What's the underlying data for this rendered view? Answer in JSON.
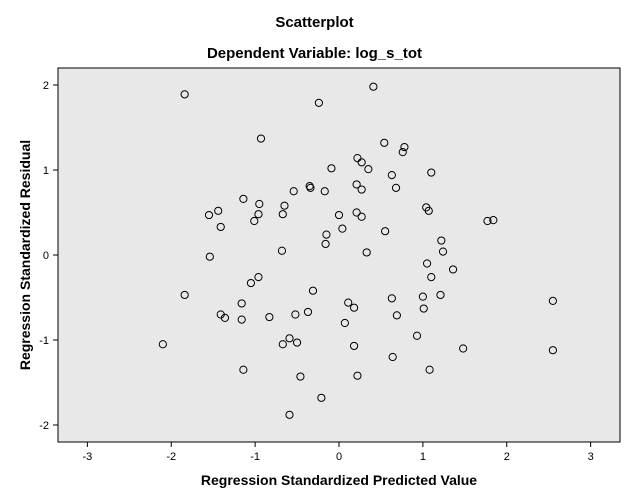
{
  "chart_data": {
    "type": "scatter",
    "title": "Scatterplot",
    "subtitle": "Dependent Variable: log_s_tot",
    "xlabel": "Regression Standardized Predicted Value",
    "ylabel": "Regression Standardized Residual",
    "xlim": [
      -3.35,
      3.35
    ],
    "ylim": [
      -2.2,
      2.2
    ],
    "x_ticks": [
      "-3",
      "-2",
      "-1",
      "0",
      "1",
      "2",
      "3"
    ],
    "y_ticks": [
      "2",
      "1",
      "0",
      "-1",
      "-2"
    ],
    "grid": false,
    "background": "#e8e8e8",
    "marker": "hollow circle",
    "points": [
      {
        "x": -1.84,
        "y": 1.89
      },
      {
        "x": -0.24,
        "y": 1.79
      },
      {
        "x": 0.41,
        "y": 1.98
      },
      {
        "x": -0.93,
        "y": 1.37
      },
      {
        "x": 0.54,
        "y": 1.32
      },
      {
        "x": 0.78,
        "y": 1.27
      },
      {
        "x": 0.76,
        "y": 1.21
      },
      {
        "x": 0.22,
        "y": 1.14
      },
      {
        "x": 0.27,
        "y": 1.09
      },
      {
        "x": 0.35,
        "y": 1.01
      },
      {
        "x": -0.09,
        "y": 1.02
      },
      {
        "x": 0.63,
        "y": 0.94
      },
      {
        "x": 1.1,
        "y": 0.97
      },
      {
        "x": 0.21,
        "y": 0.83
      },
      {
        "x": 0.68,
        "y": 0.79
      },
      {
        "x": -0.35,
        "y": 0.81
      },
      {
        "x": -0.54,
        "y": 0.75
      },
      {
        "x": 0.27,
        "y": 0.77
      },
      {
        "x": -0.34,
        "y": 0.79
      },
      {
        "x": -0.17,
        "y": 0.75
      },
      {
        "x": -1.14,
        "y": 0.66
      },
      {
        "x": -0.95,
        "y": 0.6
      },
      {
        "x": -0.65,
        "y": 0.58
      },
      {
        "x": 1.04,
        "y": 0.56
      },
      {
        "x": 1.07,
        "y": 0.52
      },
      {
        "x": -1.44,
        "y": 0.52
      },
      {
        "x": -1.55,
        "y": 0.47
      },
      {
        "x": -0.96,
        "y": 0.48
      },
      {
        "x": -0.67,
        "y": 0.48
      },
      {
        "x": 0.0,
        "y": 0.47
      },
      {
        "x": 0.21,
        "y": 0.5
      },
      {
        "x": 0.27,
        "y": 0.45
      },
      {
        "x": 1.77,
        "y": 0.4
      },
      {
        "x": 1.84,
        "y": 0.41
      },
      {
        "x": -1.01,
        "y": 0.4
      },
      {
        "x": -1.41,
        "y": 0.33
      },
      {
        "x": 0.04,
        "y": 0.31
      },
      {
        "x": 0.55,
        "y": 0.28
      },
      {
        "x": -0.15,
        "y": 0.24
      },
      {
        "x": 1.22,
        "y": 0.17
      },
      {
        "x": -0.16,
        "y": 0.13
      },
      {
        "x": -0.68,
        "y": 0.05
      },
      {
        "x": 1.24,
        "y": 0.04
      },
      {
        "x": 0.33,
        "y": 0.03
      },
      {
        "x": -1.54,
        "y": -0.02
      },
      {
        "x": 1.05,
        "y": -0.1
      },
      {
        "x": 1.36,
        "y": -0.17
      },
      {
        "x": -0.96,
        "y": -0.26
      },
      {
        "x": 1.1,
        "y": -0.26
      },
      {
        "x": -1.05,
        "y": -0.33
      },
      {
        "x": -0.31,
        "y": -0.42
      },
      {
        "x": -1.84,
        "y": -0.47
      },
      {
        "x": 1.21,
        "y": -0.47
      },
      {
        "x": 1.0,
        "y": -0.49
      },
      {
        "x": 0.63,
        "y": -0.51
      },
      {
        "x": 2.55,
        "y": -0.54
      },
      {
        "x": -1.16,
        "y": -0.57
      },
      {
        "x": 0.11,
        "y": -0.56
      },
      {
        "x": 0.18,
        "y": -0.62
      },
      {
        "x": 1.01,
        "y": -0.63
      },
      {
        "x": -0.37,
        "y": -0.67
      },
      {
        "x": -0.52,
        "y": -0.7
      },
      {
        "x": -1.41,
        "y": -0.7
      },
      {
        "x": -1.36,
        "y": -0.74
      },
      {
        "x": -0.83,
        "y": -0.73
      },
      {
        "x": 0.69,
        "y": -0.71
      },
      {
        "x": -1.16,
        "y": -0.76
      },
      {
        "x": 0.07,
        "y": -0.8
      },
      {
        "x": 0.93,
        "y": -0.95
      },
      {
        "x": -0.59,
        "y": -0.98
      },
      {
        "x": -0.5,
        "y": -1.03
      },
      {
        "x": -0.67,
        "y": -1.05
      },
      {
        "x": 0.18,
        "y": -1.07
      },
      {
        "x": -2.1,
        "y": -1.05
      },
      {
        "x": 1.48,
        "y": -1.1
      },
      {
        "x": 2.55,
        "y": -1.12
      },
      {
        "x": 0.64,
        "y": -1.2
      },
      {
        "x": -1.14,
        "y": -1.35
      },
      {
        "x": 1.08,
        "y": -1.35
      },
      {
        "x": -0.46,
        "y": -1.43
      },
      {
        "x": 0.22,
        "y": -1.42
      },
      {
        "x": -0.21,
        "y": -1.68
      },
      {
        "x": -0.59,
        "y": -1.88
      }
    ]
  }
}
